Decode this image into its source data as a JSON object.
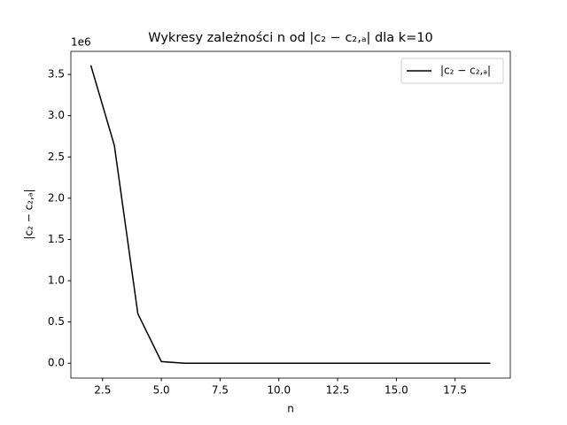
{
  "chart_data": {
    "type": "line",
    "title": "Wykresy zależności n od |c₂ − c₂,ₐ| dla k=10",
    "x_label": "n",
    "y_label": "|c₂ − c₂,ₐ|",
    "y_offset_label": "1e6",
    "x": [
      2,
      3,
      4,
      5,
      6,
      7,
      8,
      9,
      10,
      11,
      12,
      13,
      14,
      15,
      16,
      17,
      18,
      19
    ],
    "series": [
      {
        "name": "|c₂ − c₂,ₐ|",
        "color": "#000000",
        "values": [
          3610000,
          2640000,
          600000,
          20000,
          0,
          0,
          0,
          0,
          0,
          0,
          0,
          0,
          0,
          0,
          0,
          0,
          0,
          0
        ]
      }
    ],
    "xlim": [
      1.15,
      19.85
    ],
    "ylim": [
      -180000,
      3780000
    ],
    "xticks": [
      2.5,
      {
        "value": 5,
        "label": "5.0"
      },
      7.5,
      {
        "value": 10,
        "label": "10.0"
      },
      12.5,
      {
        "value": 15,
        "label": "15.0"
      },
      17.5
    ],
    "yticks": [
      {
        "value": 0,
        "label": "0.0"
      },
      {
        "value": 500000,
        "label": "0.5"
      },
      {
        "value": 1000000,
        "label": "1.0"
      },
      {
        "value": 1500000,
        "label": "1.5"
      },
      {
        "value": 2000000,
        "label": "2.0"
      },
      {
        "value": 2500000,
        "label": "2.5"
      },
      {
        "value": 3000000,
        "label": "3.0"
      },
      {
        "value": 3500000,
        "label": "3.5"
      }
    ],
    "legend": "upper right",
    "grid": false
  }
}
